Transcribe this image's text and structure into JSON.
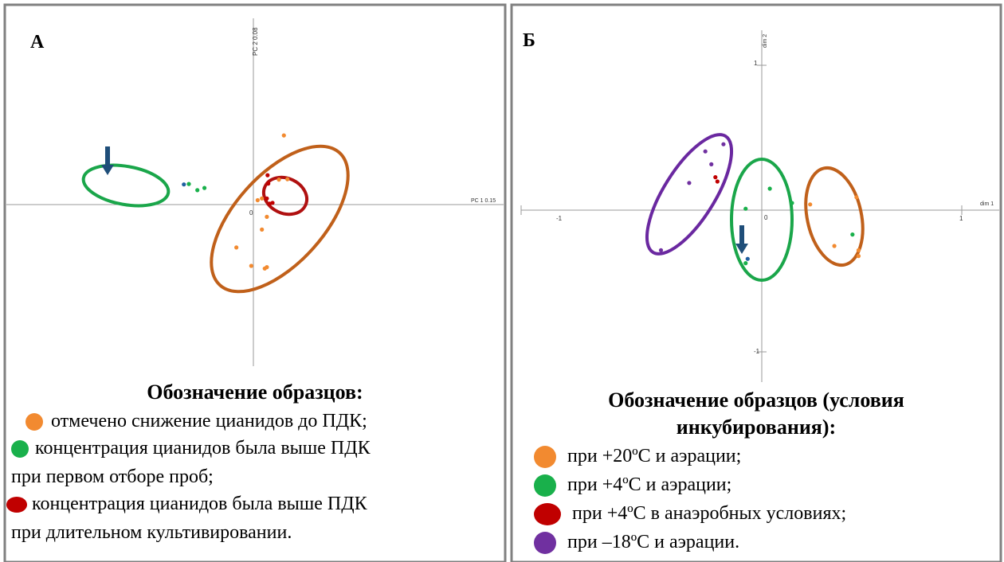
{
  "panels": [
    {
      "title": "А",
      "chart_data": {
        "type": "scatter",
        "xlabel": "PC 1 0.15",
        "ylabel": "PC 2 0.08",
        "origin_label": "0",
        "points": [
          {
            "x": 0.43,
            "y": 1.58,
            "group": "orange"
          },
          {
            "x": 0.36,
            "y": 0.57,
            "group": "orange"
          },
          {
            "x": 0.48,
            "y": 0.58,
            "group": "orange"
          },
          {
            "x": 0.19,
            "y": -0.28,
            "group": "orange"
          },
          {
            "x": 0.12,
            "y": -0.57,
            "group": "orange"
          },
          {
            "x": -0.24,
            "y": -0.98,
            "group": "orange"
          },
          {
            "x": 0.19,
            "y": -1.43,
            "group": "orange"
          },
          {
            "x": 0.16,
            "y": -1.46,
            "group": "orange"
          },
          {
            "x": -0.03,
            "y": -1.4,
            "group": "orange"
          },
          {
            "x": 0.06,
            "y": 0.1,
            "group": "orange"
          },
          {
            "x": 0.12,
            "y": 0.14,
            "group": "orange"
          },
          {
            "x": 0.2,
            "y": 0.67,
            "group": "red"
          },
          {
            "x": 0.21,
            "y": 0.48,
            "group": "red"
          },
          {
            "x": 0.19,
            "y": 0.14,
            "group": "red"
          },
          {
            "x": 0.23,
            "y": 0.02,
            "group": "red"
          },
          {
            "x": 0.27,
            "y": 0.04,
            "group": "red"
          },
          {
            "x": -0.91,
            "y": 0.47,
            "group": "green"
          },
          {
            "x": -0.79,
            "y": 0.33,
            "group": "green"
          },
          {
            "x": -0.69,
            "y": 0.38,
            "group": "green"
          },
          {
            "x": -0.98,
            "y": 0.46,
            "group": "blue"
          }
        ],
        "marked_point": {
          "x": -0.98,
          "y": 0.46
        }
      },
      "legend": {
        "heading": "Обозначение образцов:",
        "items": [
          {
            "color": "#f28a30",
            "text": "отмечено снижение цианидов до ПДК;"
          },
          {
            "color": "#19b04b",
            "text": "концентрация цианидов была выше ПДК"
          },
          {
            "color": "",
            "text": "при первом отборе проб;"
          },
          {
            "color": "#c00000",
            "text": "концентрация цианидов была выше ПДК"
          },
          {
            "color": "",
            "text": "при длительном культивировании."
          }
        ]
      }
    },
    {
      "title": "Б",
      "chart_data": {
        "type": "scatter",
        "xlabel": "dim 1",
        "ylabel": "dim 2",
        "origin_label": "0",
        "ticks_x": [
          -1,
          1
        ],
        "ticks_y": [
          1,
          -1
        ],
        "points": [
          {
            "x": 0.24,
            "y": 0.04,
            "group": "orange"
          },
          {
            "x": 0.47,
            "y": 0.09,
            "group": "orange"
          },
          {
            "x": 0.36,
            "y": -0.25,
            "group": "orange"
          },
          {
            "x": 0.48,
            "y": -0.28,
            "group": "orange"
          },
          {
            "x": 0.48,
            "y": -0.32,
            "group": "orange"
          },
          {
            "x": 0.45,
            "y": -0.17,
            "group": "green"
          },
          {
            "x": 0.04,
            "y": 0.15,
            "group": "green"
          },
          {
            "x": 0.15,
            "y": 0.05,
            "group": "green"
          },
          {
            "x": -0.08,
            "y": -0.37,
            "group": "green"
          },
          {
            "x": -0.08,
            "y": 0.01,
            "group": "green"
          },
          {
            "x": -0.22,
            "y": 0.2,
            "group": "red"
          },
          {
            "x": -0.23,
            "y": 0.23,
            "group": "red"
          },
          {
            "x": -0.28,
            "y": 0.41,
            "group": "purple"
          },
          {
            "x": -0.19,
            "y": 0.46,
            "group": "purple"
          },
          {
            "x": -0.25,
            "y": 0.32,
            "group": "purple"
          },
          {
            "x": -0.36,
            "y": 0.19,
            "group": "purple"
          },
          {
            "x": -0.5,
            "y": -0.28,
            "group": "purple"
          },
          {
            "x": -0.07,
            "y": -0.34,
            "group": "blue"
          }
        ],
        "marked_point": {
          "x": -0.07,
          "y": -0.34
        }
      },
      "legend": {
        "heading_line1": "Обозначение образцов (условия",
        "heading_line2": "инкубирования):",
        "items": [
          {
            "color": "#f28a30",
            "text": "при +20ºС и аэрации;"
          },
          {
            "color": "#19b04b",
            "text": "при +4ºС и аэрации;"
          },
          {
            "color": "#c00000",
            "text": "при +4ºС в анаэробных условиях;"
          },
          {
            "color": "#7030a0",
            "text": "при –18ºС и аэрации."
          }
        ]
      }
    }
  ],
  "colors": {
    "orange": "#f28a30",
    "green": "#19b04b",
    "red": "#c00000",
    "purple": "#7030a0",
    "blue": "#1f5fa0",
    "ellipse_orange": "#c0601a",
    "ellipse_green": "#1aa64a",
    "ellipse_red": "#b01010",
    "ellipse_purple": "#6a28a0",
    "arrow": "#1f4e79"
  }
}
